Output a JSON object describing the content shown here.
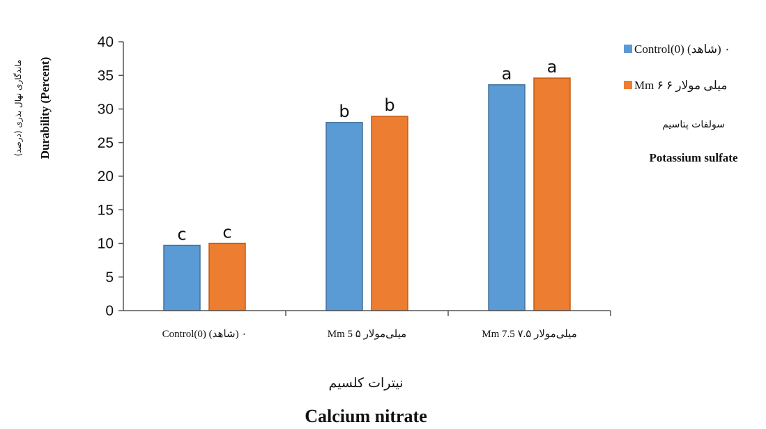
{
  "chart_data": {
    "type": "bar",
    "categories": [
      "Control(0) (شاهد) ۰",
      "Mm 5   ۵ میلی‌مولار",
      "Mm 7.5   ۷.۵ میلی‌مولار"
    ],
    "series": [
      {
        "name": "Control(0) (شاهد) ۰",
        "color": "#5B9BD5",
        "values": [
          9.7,
          28.0,
          33.6
        ],
        "letters": [
          "c",
          "b",
          "a"
        ]
      },
      {
        "name": "Mm ۶   ۶ میلی مولار",
        "color": "#ED7D31",
        "values": [
          10.0,
          28.9,
          34.6
        ],
        "letters": [
          "c",
          "b",
          "a"
        ]
      }
    ],
    "ylim": [
      0,
      40
    ],
    "yticks": [
      0,
      5,
      10,
      15,
      20,
      25,
      30,
      35,
      40
    ],
    "ylabel_fa": "ماندگاری نهال بذری (درصد)",
    "ylabel_en": "Durability (Percent)",
    "xlabel_fa": "نیترات کلسیم",
    "xlabel_en": "Calcium nitrate",
    "legend_title_fa": "سولفات پتاسیم",
    "legend_title_en": "Potassium sulfate",
    "legend_position": "right",
    "grid": false
  }
}
